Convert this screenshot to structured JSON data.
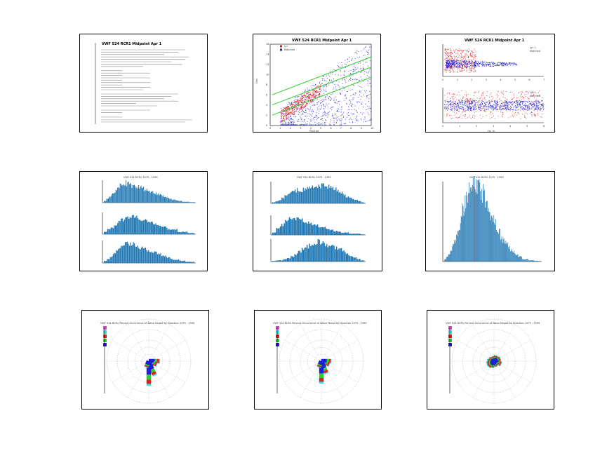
{
  "colors": {
    "red": "#e41a1c",
    "blue": "#1f1fd6",
    "green": "#2bd12b",
    "histogram": "#1f77b4",
    "magenta": "#e23ee2",
    "cyan": "#34e0e0"
  },
  "panels": {
    "doc": {
      "title": "VWF 524 RCR1 Midpoint Apr 1"
    },
    "scatter_main": {
      "title": "VWF 524 RCR1 Midpoint Apr 1",
      "xlabel": "Pred wt",
      "ylabel": "Obs",
      "legend": [
        "Lyr",
        "Matched"
      ],
      "x_ticks": [
        "0",
        "1",
        "2",
        "3",
        "4",
        "5",
        "6",
        "7",
        "8",
        "9",
        "10"
      ],
      "y_ticks": [
        "0",
        "2",
        "4",
        "6",
        "8",
        "10",
        "12",
        "14",
        "16"
      ]
    },
    "scatter_stack": {
      "title": "VWF 524 RCR1 Midpoint Apr 1",
      "legend": [
        "Lyr 1",
        "Matched"
      ],
      "xlabel": "Hs, m",
      "x_ticks_top": [
        "0",
        "1",
        "2",
        "3",
        "4",
        "5",
        "6",
        "7"
      ],
      "x_ticks_bottom": [
        "0",
        "1",
        "2",
        "3",
        "4",
        "5",
        "6"
      ]
    },
    "hist_a": {
      "title": "VWF 524 RCR1 1979 - 1999"
    },
    "hist_b": {
      "title": "VWF 524 RCR1 1979 - 1999"
    },
    "hist_c": {
      "title": "VWF 524 RCR1 1979 - 1999"
    },
    "rose_a": {
      "title": "VWF 524 RCR1 Percent Occurrence of Wave Height by Direction 1979 - 1999"
    },
    "rose_b": {
      "title": "VWF 524 RCR1 Percent Occurrence of Wave Period by Direction 1979 - 1999"
    },
    "rose_c": {
      "title": "VWF 524 RCR1 Percent Occurrence of Wave Height by Direction 1979 - 1999"
    }
  },
  "chart_data": [
    {
      "type": "table",
      "title": "VWF 524 RCR1 Midpoint Apr 1"
    },
    {
      "type": "scatter",
      "title": "VWF 524 RCR1 Midpoint Apr 1",
      "xlabel": "Pred wt",
      "ylabel": "Obs",
      "xlim": [
        0,
        10
      ],
      "ylim": [
        0,
        16
      ],
      "series": [
        {
          "name": "Lyr",
          "color": "red"
        },
        {
          "name": "Matched",
          "color": "blue"
        }
      ],
      "fit_lines": [
        {
          "y0": 2.0,
          "slope": 1.0
        },
        {
          "y0": 4.0,
          "slope": 1.0
        },
        {
          "y0": 6.0,
          "slope": 1.0
        }
      ],
      "legend_position": "top-left"
    },
    {
      "type": "scatter",
      "title": "VWF 524 RCR1 Midpoint Apr 1",
      "xlabel": "Hs, m",
      "series": [
        {
          "name": "Lyr 1",
          "color": "red"
        },
        {
          "name": "Matched",
          "color": "blue"
        }
      ]
    },
    {
      "type": "bar",
      "title": "VWF 524 RCR1 1979 - 1999",
      "subplots": [
        {
          "values": [
            2,
            4,
            6,
            9,
            12,
            15,
            18,
            20,
            21,
            20,
            19,
            18,
            17,
            17,
            16,
            15,
            14,
            13,
            12,
            11,
            10,
            9,
            8,
            7,
            6,
            5,
            4,
            3,
            3,
            2,
            2,
            1,
            1,
            1,
            0.5,
            0.5
          ]
        },
        {
          "values": [
            1,
            2,
            3,
            4,
            5,
            6,
            7,
            7,
            8,
            7,
            7,
            6,
            6,
            5,
            5,
            4,
            4,
            3,
            3,
            2,
            2,
            2,
            1,
            1,
            1,
            0.5,
            0.5
          ]
        },
        {
          "values": [
            2,
            4,
            6,
            9,
            12,
            14,
            16,
            17,
            18,
            17,
            16,
            15,
            14,
            13,
            12,
            11,
            10,
            9,
            8,
            7,
            6,
            5,
            4,
            3,
            3,
            2,
            2,
            1,
            1,
            1
          ]
        }
      ]
    },
    {
      "type": "bar",
      "title": "VWF 524 RCR1 1979 - 1999",
      "subplots": [
        {
          "values": [
            1,
            2,
            3,
            5,
            7,
            9,
            11,
            12,
            13,
            12,
            13,
            14,
            15,
            16,
            15,
            16,
            17,
            18,
            16,
            15,
            14,
            12,
            10,
            8,
            6,
            5,
            4,
            3,
            2,
            1
          ]
        },
        {
          "values": [
            2,
            5,
            8,
            11,
            13,
            14,
            13,
            12,
            11,
            10,
            9,
            8,
            7,
            6,
            5,
            4,
            3,
            3,
            2,
            2,
            1,
            1,
            1,
            0.5
          ]
        },
        {
          "values": [
            0.5,
            1,
            1,
            2,
            3,
            4,
            6,
            8,
            10,
            12,
            14,
            15,
            16,
            15,
            14,
            13,
            12,
            11,
            10,
            8,
            6,
            4,
            3,
            2,
            1
          ]
        }
      ]
    },
    {
      "type": "bar",
      "title": "VWF 524 RCR1 1979 - 1999",
      "values": [
        1,
        2,
        3,
        5,
        7,
        9,
        12,
        15,
        18,
        21,
        24,
        27,
        29,
        30,
        31,
        32,
        31,
        30,
        29,
        28,
        26,
        24,
        22,
        20,
        18,
        16,
        14,
        12,
        10,
        9,
        8,
        7,
        6,
        5,
        4,
        3,
        3,
        2,
        2,
        1,
        1,
        1,
        0.5,
        0.5,
        0.5,
        0.3,
        0.3,
        0.2
      ]
    },
    {
      "type": "pie",
      "title": "VWF 524 RCR1 Percent Occurrence of Wave Height by Direction 1979 - 1999",
      "directions_deg": [
        90,
        112.5,
        135,
        157.5,
        180,
        202.5
      ],
      "lengths": [
        10,
        8,
        6,
        14,
        22,
        6
      ],
      "bands": [
        "blue",
        "green",
        "red",
        "cyan"
      ]
    },
    {
      "type": "pie",
      "title": "VWF 524 RCR1 Percent Occurrence of Wave Period by Direction 1979 - 1999",
      "directions_deg": [
        90,
        112.5,
        135,
        157.5,
        180,
        202.5
      ],
      "lengths": [
        9,
        8,
        6,
        12,
        20,
        6
      ],
      "bands": [
        "blue",
        "green",
        "red",
        "cyan"
      ]
    },
    {
      "type": "pie",
      "title": "VWF 524 RCR1 Percent Occurrence of Wave Height by Direction 1979 - 1999",
      "directions_deg": [
        0,
        22.5,
        45,
        67.5,
        90,
        112.5,
        135,
        157.5,
        180,
        202.5,
        225,
        247.5,
        270,
        292.5,
        315,
        337.5
      ],
      "lengths": [
        5,
        6,
        6,
        7,
        7,
        8,
        6,
        5,
        6,
        7,
        8,
        8,
        7,
        6,
        5,
        5
      ],
      "bands": [
        "blue",
        "green",
        "red",
        "cyan"
      ]
    }
  ]
}
